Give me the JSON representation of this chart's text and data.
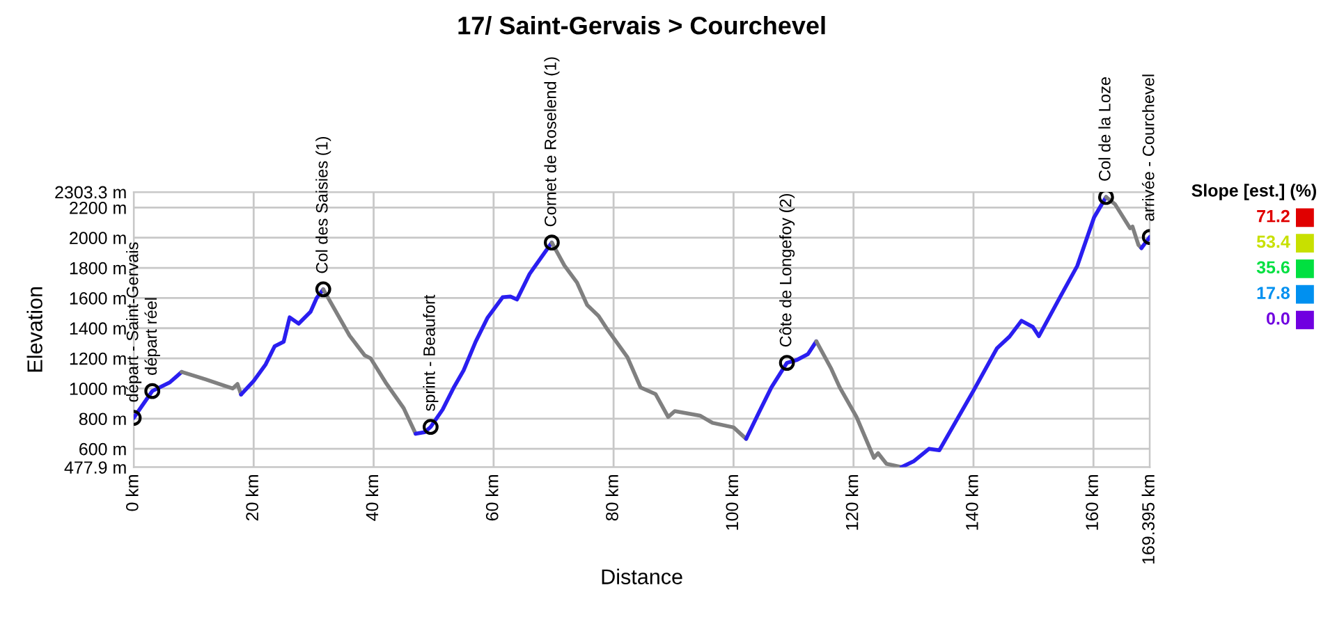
{
  "chart_data": {
    "type": "line",
    "title": "17/ Saint-Gervais > Courchevel",
    "xlabel": "Distance",
    "ylabel": "Elevation",
    "clabel": "Slope [est.] (%)",
    "cticks": [
      {
        "value": 71.2,
        "label": "71.2"
      },
      {
        "value": 53.4,
        "label": "53.4"
      },
      {
        "value": 35.6,
        "label": "35.6"
      },
      {
        "value": 17.8,
        "label": "17.8"
      },
      {
        "value": 0,
        "label": "0.0"
      }
    ],
    "xlim": [
      0,
      169.395
    ],
    "xticks": [
      {
        "value": 0,
        "label": "0 km"
      },
      {
        "value": 20,
        "label": "20 km"
      },
      {
        "value": 40,
        "label": "40 km"
      },
      {
        "value": 60,
        "label": "60 km"
      },
      {
        "value": 80,
        "label": "80 km"
      },
      {
        "value": 100,
        "label": "100 km"
      },
      {
        "value": 120,
        "label": "120 km"
      },
      {
        "value": 140,
        "label": "140 km"
      },
      {
        "value": 160,
        "label": "160 km"
      },
      {
        "value": 169.395,
        "label": "169.395 km"
      }
    ],
    "ylim": [
      477.9,
      2303.3
    ],
    "yticks": [
      {
        "value": 477.9,
        "label": "477.9 m"
      },
      {
        "value": 600,
        "label": "600 m"
      },
      {
        "value": 800,
        "label": "800 m"
      },
      {
        "value": 1000,
        "label": "1000 m"
      },
      {
        "value": 1200,
        "label": "1200 m"
      },
      {
        "value": 1400,
        "label": "1400 m"
      },
      {
        "value": 1600,
        "label": "1600 m"
      },
      {
        "value": 1800,
        "label": "1800 m"
      },
      {
        "value": 2000,
        "label": "2000 m"
      },
      {
        "value": 2200,
        "label": "2200 m"
      },
      {
        "value": 2303.3,
        "label": "2303.3 m"
      }
    ],
    "grid": true,
    "series": [
      {
        "color": "#2a1ef0",
        "x": [
          0,
          3.1,
          6,
          8.0
        ],
        "values": [
          805,
          983,
          1040,
          1110
        ]
      },
      {
        "color": "#808080",
        "x": [
          8.0,
          12,
          15,
          16.5,
          17.3,
          17.9
        ],
        "values": [
          1110,
          1060,
          1020,
          1000,
          1030,
          960
        ]
      },
      {
        "color": "#2a1ef0",
        "x": [
          17.9,
          20,
          22,
          23.5,
          25,
          26,
          27.5,
          29.5,
          30.5,
          31.6
        ],
        "values": [
          960,
          1050,
          1160,
          1280,
          1310,
          1472,
          1430,
          1510,
          1600,
          1658
        ]
      },
      {
        "color": "#808080",
        "x": [
          31.6,
          36,
          38.5,
          39.5,
          42,
          45,
          47
        ],
        "values": [
          1658,
          1350,
          1220,
          1200,
          1040,
          870,
          700
        ]
      },
      {
        "color": "#2a1ef0",
        "x": [
          47,
          48.5,
          49.5,
          51.5,
          53.4,
          55,
          57,
          59,
          61.5,
          62.8,
          63.9,
          66,
          69.7
        ],
        "values": [
          700,
          710,
          745,
          860,
          1010,
          1120,
          1310,
          1470,
          1605,
          1610,
          1590,
          1760,
          1968
        ]
      },
      {
        "color": "#808080",
        "x": [
          69.7,
          71.8,
          73.9,
          75.6,
          77.5,
          79,
          82.3,
          84.5,
          87,
          89.1,
          90.2,
          94.4,
          96.5,
          100,
          102.1
        ],
        "values": [
          1968,
          1816,
          1703,
          1553,
          1481,
          1390,
          1208,
          1007,
          963,
          811,
          850,
          820,
          772,
          742,
          666
        ]
      },
      {
        "color": "#2a1ef0",
        "x": [
          102.1,
          104.2,
          106.3,
          108.9,
          110.6,
          112.4,
          113.8
        ],
        "values": [
          666,
          838,
          1007,
          1170,
          1190,
          1228,
          1313
        ]
      },
      {
        "color": "#808080",
        "x": [
          113.8,
          116.3,
          117.7,
          120.5,
          123.4,
          124.1,
          125.5,
          128
        ],
        "values": [
          1313,
          1130,
          1007,
          811,
          540,
          571,
          500,
          478
        ]
      },
      {
        "color": "#2a1ef0",
        "x": [
          128,
          130.1,
          132.6,
          134.3,
          140,
          143.9,
          146,
          148,
          149.9,
          150.9,
          154.5,
          157.3,
          160.1,
          162.1
        ],
        "values": [
          478,
          519,
          600,
          590,
          985,
          1266,
          1344,
          1449,
          1408,
          1347,
          1611,
          1813,
          2135,
          2270
        ]
      },
      {
        "color": "#808080",
        "x": [
          162.1,
          163.6,
          166.1,
          166.5,
          167.5,
          168
        ],
        "values": [
          2270,
          2222,
          2063,
          2074,
          1952,
          1931
        ]
      },
      {
        "color": "#2a1ef0",
        "x": [
          168,
          169.395
        ],
        "values": [
          1931,
          2005
        ]
      },
      {
        "type": "scatter",
        "color": "#000000",
        "marker": "circle",
        "x": [
          0,
          3.1,
          31.6,
          49.5,
          69.7,
          108.9,
          162.1,
          169.395
        ],
        "values": [
          805,
          983,
          1658,
          745,
          1968,
          1170,
          2270,
          2005
        ]
      }
    ],
    "annotations": [
      {
        "text": "départ - Saint-Gervais",
        "x": 0,
        "y": 805
      },
      {
        "text": "départ réel",
        "x": 3.1,
        "y": 983
      },
      {
        "text": "Col des Saisies (1)",
        "x": 31.6,
        "y": 1658
      },
      {
        "text": "sprint - Beaufort",
        "x": 49.5,
        "y": 745
      },
      {
        "text": "Cornet de Roselend (1)",
        "x": 69.7,
        "y": 1968
      },
      {
        "text": "Côte de Longefoy (2)",
        "x": 108.9,
        "y": 1170
      },
      {
        "text": "Col de la Loze",
        "x": 162.1,
        "y": 2270
      },
      {
        "text": "arrivée - Courchevel",
        "x": 169.395,
        "y": 2005
      }
    ]
  }
}
